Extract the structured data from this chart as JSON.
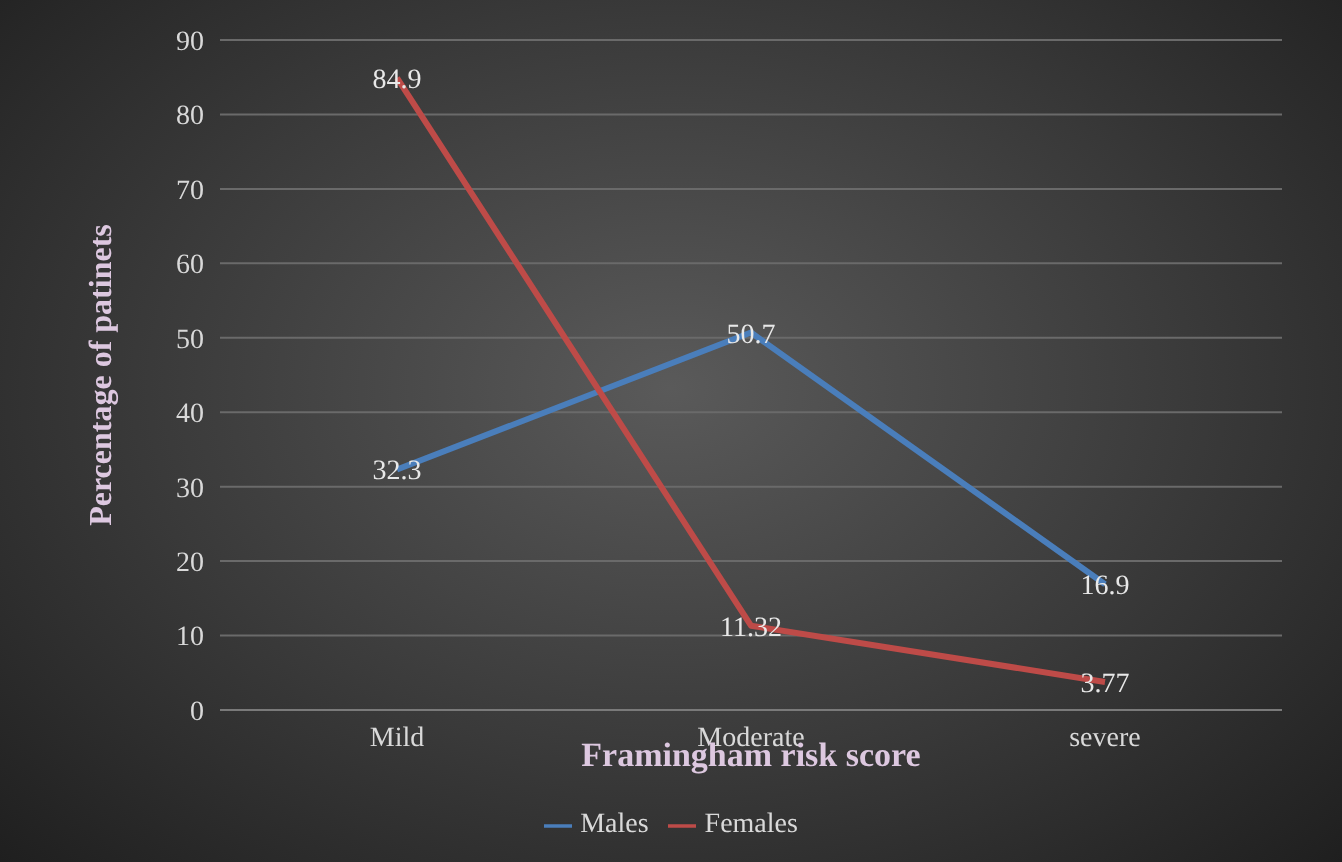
{
  "chart_data": {
    "type": "line",
    "xlabel": "Framingham  risk score",
    "ylabel": "Percentage of patinets",
    "categories": [
      "Mild",
      "Moderate",
      "severe"
    ],
    "series": [
      {
        "name": "Males",
        "color": "#4a7ebb",
        "values": [
          32.3,
          50.7,
          16.9
        ]
      },
      {
        "name": "Females",
        "color": "#be4b48",
        "values": [
          84.9,
          11.32,
          3.77
        ]
      }
    ],
    "ylim": [
      0,
      90
    ],
    "yticks": [
      0,
      10,
      20,
      30,
      40,
      50,
      60,
      70,
      80,
      90
    ],
    "grid": "y",
    "legend": "bottom",
    "data_labels": true,
    "marker": "none",
    "line_style": "solid"
  }
}
